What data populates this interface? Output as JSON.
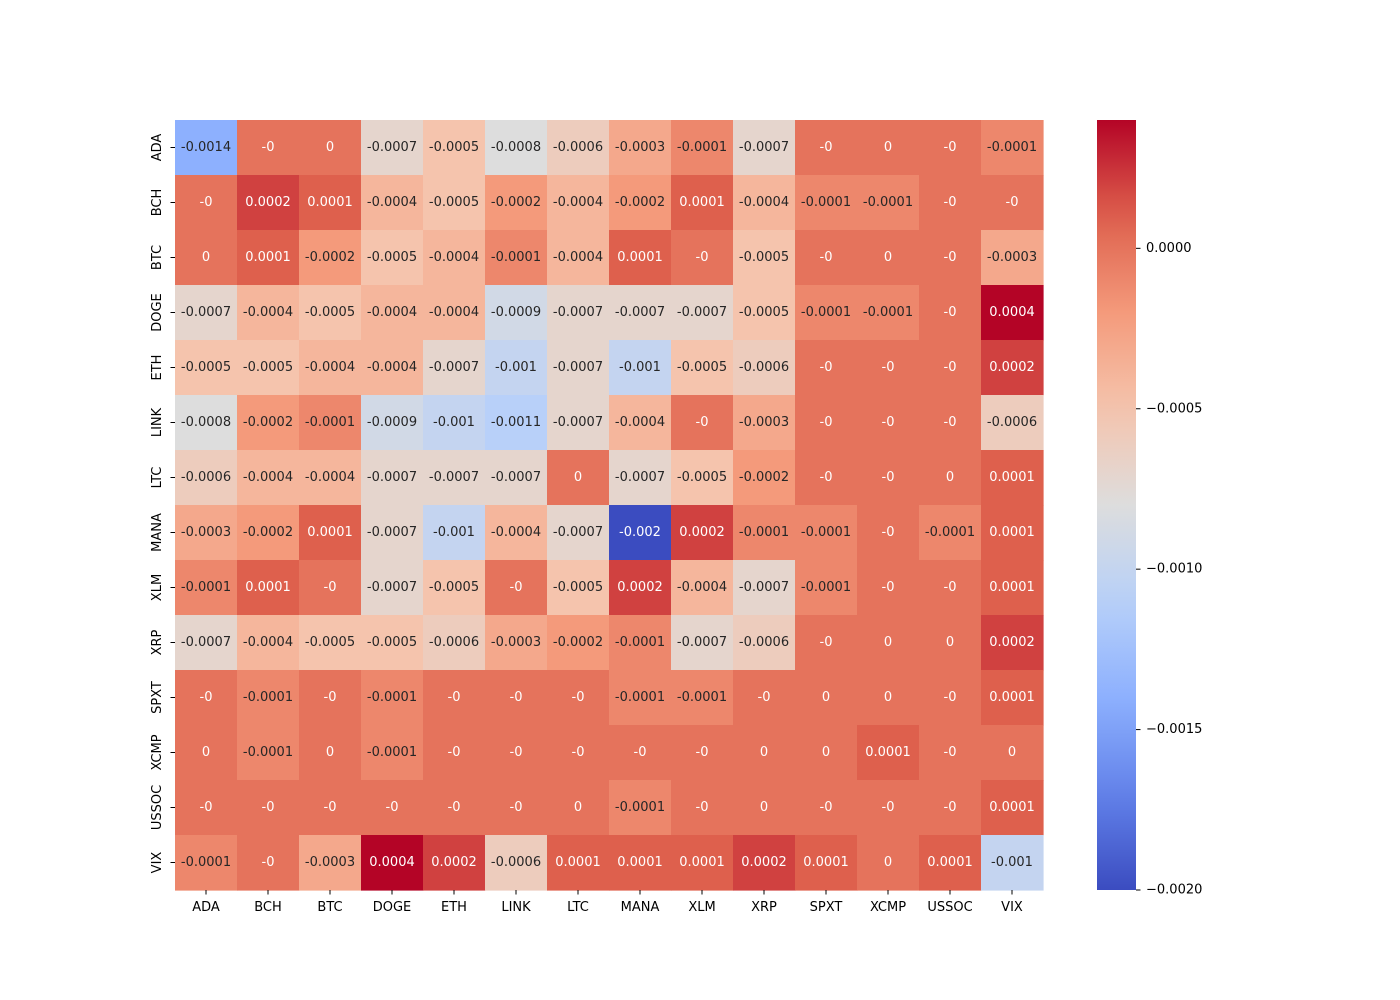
{
  "chart_data": {
    "type": "heatmap",
    "title": "",
    "xlabel": "",
    "ylabel": "",
    "colormap": "coolwarm",
    "vmin": -0.002,
    "vmax": 0.0004,
    "row_labels": [
      "ADA",
      "BCH",
      "BTC",
      "DOGE",
      "ETH",
      "LINK",
      "LTC",
      "MANA",
      "XLM",
      "XRP",
      "SPXT",
      "XCMP",
      "USSOC",
      "VIX"
    ],
    "col_labels": [
      "ADA",
      "BCH",
      "BTC",
      "DOGE",
      "ETH",
      "LINK",
      "LTC",
      "MANA",
      "XLM",
      "XRP",
      "SPXT",
      "XCMP",
      "USSOC",
      "VIX"
    ],
    "values": [
      [
        -0.0014,
        0,
        0,
        -0.0007,
        -0.0005,
        -0.0008,
        -0.0006,
        -0.0003,
        -0.0001,
        -0.0007,
        0,
        0,
        0,
        -0.0001
      ],
      [
        0,
        0.0002,
        0.0001,
        -0.0004,
        -0.0005,
        -0.0002,
        -0.0004,
        -0.0002,
        0.0001,
        -0.0004,
        -0.0001,
        -0.0001,
        0,
        0
      ],
      [
        0,
        0.0001,
        -0.0002,
        -0.0005,
        -0.0004,
        -0.0001,
        -0.0004,
        0.0001,
        0,
        -0.0005,
        0,
        0,
        0,
        -0.0003
      ],
      [
        -0.0007,
        -0.0004,
        -0.0005,
        -0.0004,
        -0.0004,
        -0.0009,
        -0.0007,
        -0.0007,
        -0.0007,
        -0.0005,
        -0.0001,
        -0.0001,
        0,
        0.0004
      ],
      [
        -0.0005,
        -0.0005,
        -0.0004,
        -0.0004,
        -0.0007,
        -0.001,
        -0.0007,
        -0.001,
        -0.0005,
        -0.0006,
        0,
        0,
        0,
        0.0002
      ],
      [
        -0.0008,
        -0.0002,
        -0.0001,
        -0.0009,
        -0.001,
        -0.0011,
        -0.0007,
        -0.0004,
        0,
        -0.0003,
        0,
        0,
        0,
        -0.0006
      ],
      [
        -0.0006,
        -0.0004,
        -0.0004,
        -0.0007,
        -0.0007,
        -0.0007,
        0,
        -0.0007,
        -0.0005,
        -0.0002,
        0,
        0,
        0,
        0.0001
      ],
      [
        -0.0003,
        -0.0002,
        0.0001,
        -0.0007,
        -0.001,
        -0.0004,
        -0.0007,
        -0.002,
        0.0002,
        -0.0001,
        -0.0001,
        0,
        -0.0001,
        0.0001
      ],
      [
        -0.0001,
        0.0001,
        0,
        -0.0007,
        -0.0005,
        0,
        -0.0005,
        0.0002,
        -0.0004,
        -0.0007,
        -0.0001,
        0,
        0,
        0.0001
      ],
      [
        -0.0007,
        -0.0004,
        -0.0005,
        -0.0005,
        -0.0006,
        -0.0003,
        -0.0002,
        -0.0001,
        -0.0007,
        -0.0006,
        0,
        0,
        0,
        0.0002
      ],
      [
        0,
        -0.0001,
        0,
        -0.0001,
        0,
        0,
        0,
        -0.0001,
        -0.0001,
        0,
        0,
        0,
        0,
        0.0001
      ],
      [
        0,
        -0.0001,
        0,
        -0.0001,
        0,
        0,
        0,
        0,
        0,
        0,
        0,
        0.0001,
        0,
        0
      ],
      [
        0,
        0,
        0,
        0,
        0,
        0,
        0,
        -0.0001,
        0,
        0,
        0,
        0,
        0,
        0.0001
      ],
      [
        -0.0001,
        0,
        -0.0003,
        0.0004,
        0.0002,
        -0.0006,
        0.0001,
        0.0001,
        0.0001,
        0.0002,
        0.0001,
        0,
        0.0001,
        -0.001
      ]
    ],
    "labels": [
      [
        "-0.0014",
        "-0",
        "0",
        "-0.0007",
        "-0.0005",
        "-0.0008",
        "-0.0006",
        "-0.0003",
        "-0.0001",
        "-0.0007",
        "-0",
        "0",
        "-0",
        "-0.0001"
      ],
      [
        "-0",
        "0.0002",
        "0.0001",
        "-0.0004",
        "-0.0005",
        "-0.0002",
        "-0.0004",
        "-0.0002",
        "0.0001",
        "-0.0004",
        "-0.0001",
        "-0.0001",
        "-0",
        "-0"
      ],
      [
        "0",
        "0.0001",
        "-0.0002",
        "-0.0005",
        "-0.0004",
        "-0.0001",
        "-0.0004",
        "0.0001",
        "-0",
        "-0.0005",
        "-0",
        "0",
        "-0",
        "-0.0003"
      ],
      [
        "-0.0007",
        "-0.0004",
        "-0.0005",
        "-0.0004",
        "-0.0004",
        "-0.0009",
        "-0.0007",
        "-0.0007",
        "-0.0007",
        "-0.0005",
        "-0.0001",
        "-0.0001",
        "-0",
        "0.0004"
      ],
      [
        "-0.0005",
        "-0.0005",
        "-0.0004",
        "-0.0004",
        "-0.0007",
        "-0.001",
        "-0.0007",
        "-0.001",
        "-0.0005",
        "-0.0006",
        "-0",
        "-0",
        "-0",
        "0.0002"
      ],
      [
        "-0.0008",
        "-0.0002",
        "-0.0001",
        "-0.0009",
        "-0.001",
        "-0.0011",
        "-0.0007",
        "-0.0004",
        "-0",
        "-0.0003",
        "-0",
        "-0",
        "-0",
        "-0.0006"
      ],
      [
        "-0.0006",
        "-0.0004",
        "-0.0004",
        "-0.0007",
        "-0.0007",
        "-0.0007",
        "0",
        "-0.0007",
        "-0.0005",
        "-0.0002",
        "-0",
        "-0",
        "0",
        "0.0001"
      ],
      [
        "-0.0003",
        "-0.0002",
        "0.0001",
        "-0.0007",
        "-0.001",
        "-0.0004",
        "-0.0007",
        "-0.002",
        "0.0002",
        "-0.0001",
        "-0.0001",
        "-0",
        "-0.0001",
        "0.0001"
      ],
      [
        "-0.0001",
        "0.0001",
        "-0",
        "-0.0007",
        "-0.0005",
        "-0",
        "-0.0005",
        "0.0002",
        "-0.0004",
        "-0.0007",
        "-0.0001",
        "-0",
        "-0",
        "0.0001"
      ],
      [
        "-0.0007",
        "-0.0004",
        "-0.0005",
        "-0.0005",
        "-0.0006",
        "-0.0003",
        "-0.0002",
        "-0.0001",
        "-0.0007",
        "-0.0006",
        "-0",
        "0",
        "0",
        "0.0002"
      ],
      [
        "-0",
        "-0.0001",
        "-0",
        "-0.0001",
        "-0",
        "-0",
        "-0",
        "-0.0001",
        "-0.0001",
        "-0",
        "0",
        "0",
        "-0",
        "0.0001"
      ],
      [
        "0",
        "-0.0001",
        "0",
        "-0.0001",
        "-0",
        "-0",
        "-0",
        "-0",
        "-0",
        "0",
        "0",
        "0.0001",
        "-0",
        "0"
      ],
      [
        "-0",
        "-0",
        "-0",
        "-0",
        "-0",
        "-0",
        "0",
        "-0.0001",
        "-0",
        "0",
        "-0",
        "-0",
        "-0",
        "0.0001"
      ],
      [
        "-0.0001",
        "-0",
        "-0.0003",
        "0.0004",
        "0.0002",
        "-0.0006",
        "0.0001",
        "0.0001",
        "0.0001",
        "0.0002",
        "0.0001",
        "0",
        "0.0001",
        "-0.001"
      ]
    ],
    "colorbar": {
      "ticks": [
        0.0,
        -0.0005,
        -0.001,
        -0.0015,
        -0.002
      ],
      "tick_labels": [
        "0.0000",
        "−0.0005",
        "−0.0010",
        "−0.0015",
        "−0.0020"
      ]
    },
    "legend": "none",
    "grid": false
  }
}
